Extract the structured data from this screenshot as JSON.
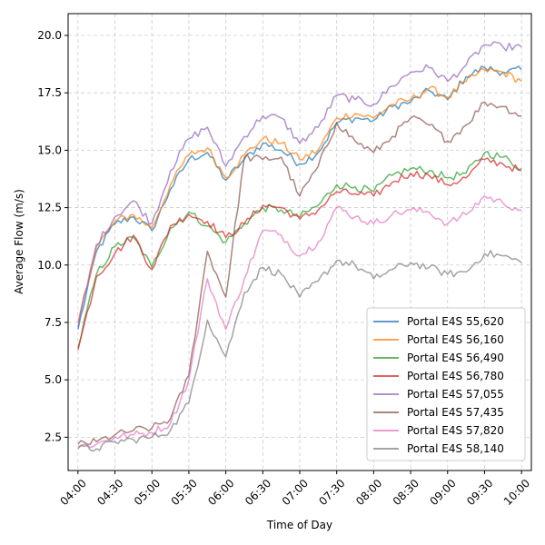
{
  "chart_data": {
    "type": "line",
    "title": "",
    "xlabel": "Time of Day",
    "ylabel": "Average Flow (m/s)",
    "x_tick_labels": [
      "04:00",
      "04:30",
      "05:00",
      "05:30",
      "06:00",
      "06:30",
      "07:00",
      "07:30",
      "08:00",
      "08:30",
      "09:00",
      "09:30",
      "10:00"
    ],
    "y_ticks": [
      2.5,
      5.0,
      7.5,
      10.0,
      12.5,
      15.0,
      17.5,
      20.0
    ],
    "y_tick_labels": [
      "2.5",
      "5.0",
      "7.5",
      "10.0",
      "12.5",
      "15.0",
      "17.5",
      "20.0"
    ],
    "xlim": [
      "03:52",
      "10:08"
    ],
    "ylim": [
      1.05,
      20.95
    ],
    "grid": true,
    "legend_position": "lower right",
    "x": [
      "04:00",
      "04:15",
      "04:30",
      "04:45",
      "05:00",
      "05:15",
      "05:30",
      "05:45",
      "06:00",
      "06:15",
      "06:30",
      "06:45",
      "07:00",
      "07:15",
      "07:30",
      "07:45",
      "08:00",
      "08:15",
      "08:30",
      "08:45",
      "09:00",
      "09:15",
      "09:30",
      "09:45",
      "10:00"
    ],
    "series": [
      {
        "name": "Portal E4S 55,620",
        "color": "#1f77b4",
        "values": [
          7.2,
          10.6,
          11.8,
          12.1,
          11.5,
          13.3,
          14.6,
          14.9,
          13.7,
          14.6,
          15.3,
          15.0,
          14.4,
          14.9,
          16.2,
          16.4,
          16.3,
          16.9,
          17.1,
          17.6,
          17.2,
          18.2,
          18.6,
          18.4,
          18.5
        ]
      },
      {
        "name": "Portal E4S 56,160",
        "color": "#ff7f0e",
        "values": [
          7.5,
          10.8,
          11.9,
          12.2,
          11.6,
          13.5,
          14.8,
          15.1,
          13.8,
          14.8,
          15.5,
          15.3,
          14.6,
          15.0,
          16.4,
          16.6,
          16.4,
          17.0,
          17.2,
          17.7,
          17.3,
          18.0,
          18.5,
          18.4,
          18.0
        ]
      },
      {
        "name": "Portal E4S 56,490",
        "color": "#2ca02c",
        "values": [
          6.4,
          9.6,
          10.8,
          11.2,
          9.9,
          11.6,
          12.3,
          11.7,
          11.0,
          11.8,
          12.5,
          12.4,
          12.1,
          12.6,
          13.5,
          13.4,
          13.2,
          13.9,
          14.2,
          14.1,
          13.8,
          14.0,
          14.9,
          14.7,
          14.2
        ]
      },
      {
        "name": "Portal E4S 56,780",
        "color": "#d62728",
        "values": [
          6.3,
          9.5,
          10.5,
          11.3,
          9.8,
          11.7,
          12.2,
          11.9,
          11.2,
          11.8,
          12.6,
          12.5,
          12.0,
          12.4,
          13.2,
          13.1,
          13.0,
          13.6,
          14.0,
          13.9,
          13.5,
          13.8,
          14.6,
          14.4,
          14.1
        ]
      },
      {
        "name": "Portal E4S 57,055",
        "color": "#9467bd",
        "values": [
          7.3,
          10.9,
          12.1,
          12.8,
          11.8,
          14.1,
          15.5,
          16.0,
          14.3,
          15.6,
          16.5,
          16.4,
          15.3,
          16.0,
          17.4,
          17.2,
          17.0,
          17.8,
          18.4,
          18.6,
          18.0,
          18.7,
          19.6,
          19.5,
          19.5
        ]
      },
      {
        "name": "Portal E4S 57,435",
        "color": "#8c564b",
        "values": [
          2.2,
          2.3,
          2.6,
          2.8,
          2.9,
          3.3,
          5.2,
          10.6,
          8.6,
          14.7,
          14.6,
          14.7,
          13.0,
          14.3,
          16.2,
          15.4,
          14.9,
          15.6,
          16.4,
          16.1,
          15.4,
          16.1,
          17.1,
          16.9,
          16.5
        ]
      },
      {
        "name": "Portal E4S 57,820",
        "color": "#e377c2",
        "values": [
          2.1,
          2.2,
          2.5,
          2.6,
          2.7,
          3.1,
          5.0,
          9.4,
          7.2,
          9.4,
          11.5,
          11.3,
          10.4,
          11.0,
          12.5,
          12.1,
          11.8,
          12.2,
          12.4,
          12.3,
          11.8,
          12.2,
          13.0,
          12.7,
          12.4
        ]
      },
      {
        "name": "Portal E4S 58,140",
        "color": "#7f7f7f",
        "values": [
          2.0,
          2.0,
          2.3,
          2.4,
          2.5,
          2.8,
          4.0,
          7.6,
          6.0,
          8.8,
          9.9,
          9.6,
          8.6,
          9.3,
          10.2,
          10.0,
          9.4,
          9.8,
          10.1,
          9.9,
          9.6,
          9.7,
          10.5,
          10.4,
          10.1
        ]
      }
    ]
  }
}
